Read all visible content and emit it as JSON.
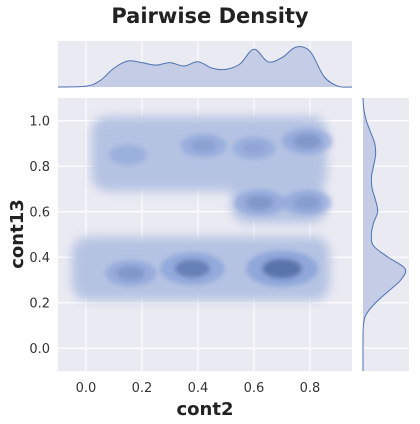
{
  "chart_data": {
    "type": "kde_joint",
    "title": "Pairwise Density",
    "xlabel": "cont2",
    "ylabel": "cont13",
    "xlim": [
      -0.1,
      0.95
    ],
    "ylim": [
      -0.1,
      1.1
    ],
    "xticks": [
      "0.0",
      "0.2",
      "0.4",
      "0.6",
      "0.8"
    ],
    "xtick_values": [
      0.0,
      0.2,
      0.4,
      0.6,
      0.8
    ],
    "yticks": [
      "0.0",
      "0.2",
      "0.4",
      "0.6",
      "0.8",
      "1.0"
    ],
    "ytick_values": [
      0.0,
      0.2,
      0.4,
      0.6,
      0.8,
      1.0
    ],
    "grid": true,
    "joint_modes": [
      {
        "x": 0.7,
        "y": 0.35,
        "weight": 1.0
      },
      {
        "x": 0.38,
        "y": 0.35,
        "weight": 0.85
      },
      {
        "x": 0.16,
        "y": 0.33,
        "weight": 0.6
      },
      {
        "x": 0.62,
        "y": 0.64,
        "weight": 0.6
      },
      {
        "x": 0.79,
        "y": 0.64,
        "weight": 0.55
      },
      {
        "x": 0.79,
        "y": 0.91,
        "weight": 0.6
      },
      {
        "x": 0.42,
        "y": 0.89,
        "weight": 0.5
      },
      {
        "x": 0.15,
        "y": 0.85,
        "weight": 0.35
      },
      {
        "x": 0.6,
        "y": 0.88,
        "weight": 0.45
      }
    ],
    "marginal_x": {
      "x": [
        -0.1,
        0.0,
        0.05,
        0.1,
        0.15,
        0.2,
        0.25,
        0.3,
        0.35,
        0.4,
        0.45,
        0.5,
        0.55,
        0.6,
        0.65,
        0.7,
        0.75,
        0.8,
        0.85,
        0.9,
        0.95
      ],
      "density": [
        0.0,
        0.02,
        0.15,
        0.45,
        0.62,
        0.58,
        0.52,
        0.58,
        0.5,
        0.6,
        0.45,
        0.42,
        0.55,
        0.9,
        0.6,
        0.7,
        0.95,
        0.85,
        0.25,
        0.02,
        0.0
      ]
    },
    "marginal_y": {
      "y": [
        -0.1,
        0.0,
        0.1,
        0.15,
        0.2,
        0.25,
        0.3,
        0.35,
        0.4,
        0.45,
        0.5,
        0.55,
        0.6,
        0.65,
        0.7,
        0.75,
        0.8,
        0.85,
        0.9,
        0.95,
        1.0,
        1.05,
        1.1
      ],
      "density": [
        0.0,
        0.0,
        0.01,
        0.08,
        0.3,
        0.6,
        0.9,
        1.0,
        0.6,
        0.25,
        0.2,
        0.25,
        0.35,
        0.3,
        0.22,
        0.2,
        0.25,
        0.3,
        0.28,
        0.18,
        0.08,
        0.02,
        0.0
      ]
    },
    "colors": {
      "background": "#eaeaf2",
      "grid": "#ffffff",
      "fill_light": "#b5c3e3",
      "fill_dark": "#3a5a92",
      "marginal_fill": "#c5cde6",
      "marginal_line": "#4c72b0"
    }
  }
}
